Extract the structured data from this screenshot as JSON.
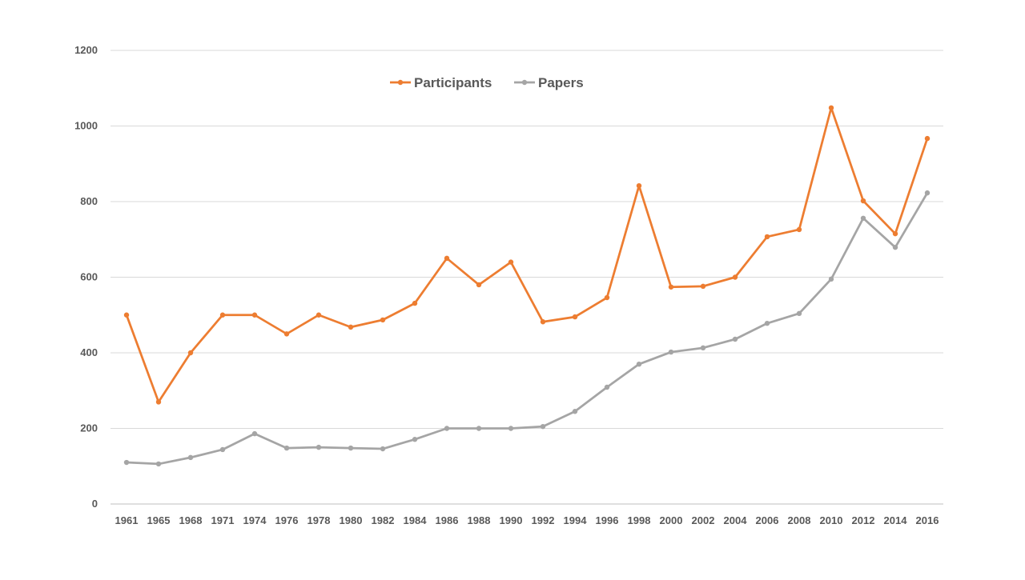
{
  "chart_data": {
    "type": "line",
    "title": "",
    "xlabel": "",
    "ylabel": "",
    "ylim": [
      0,
      1200
    ],
    "yticks": [
      0,
      200,
      400,
      600,
      800,
      1000,
      1200
    ],
    "grid": true,
    "legend_position": "top-center",
    "categories": [
      "1961",
      "1965",
      "1968",
      "1971",
      "1974",
      "1976",
      "1978",
      "1980",
      "1982",
      "1984",
      "1986",
      "1988",
      "1990",
      "1992",
      "1994",
      "1996",
      "1998",
      "2000",
      "2002",
      "2004",
      "2006",
      "2008",
      "2010",
      "2012",
      "2014",
      "2016"
    ],
    "series": [
      {
        "name": "Participants",
        "color": "#ED7D31",
        "values": [
          500,
          270,
          400,
          500,
          500,
          450,
          500,
          468,
          487,
          531,
          650,
          580,
          640,
          482,
          495,
          546,
          842,
          574,
          576,
          600,
          707,
          726,
          1048,
          802,
          715,
          967
        ]
      },
      {
        "name": "Papers",
        "color": "#A5A5A5",
        "values": [
          110,
          106,
          123,
          144,
          186,
          148,
          150,
          148,
          146,
          171,
          200,
          200,
          200,
          205,
          245,
          309,
          370,
          402,
          413,
          436,
          478,
          504,
          595,
          756,
          679,
          823
        ]
      }
    ]
  }
}
